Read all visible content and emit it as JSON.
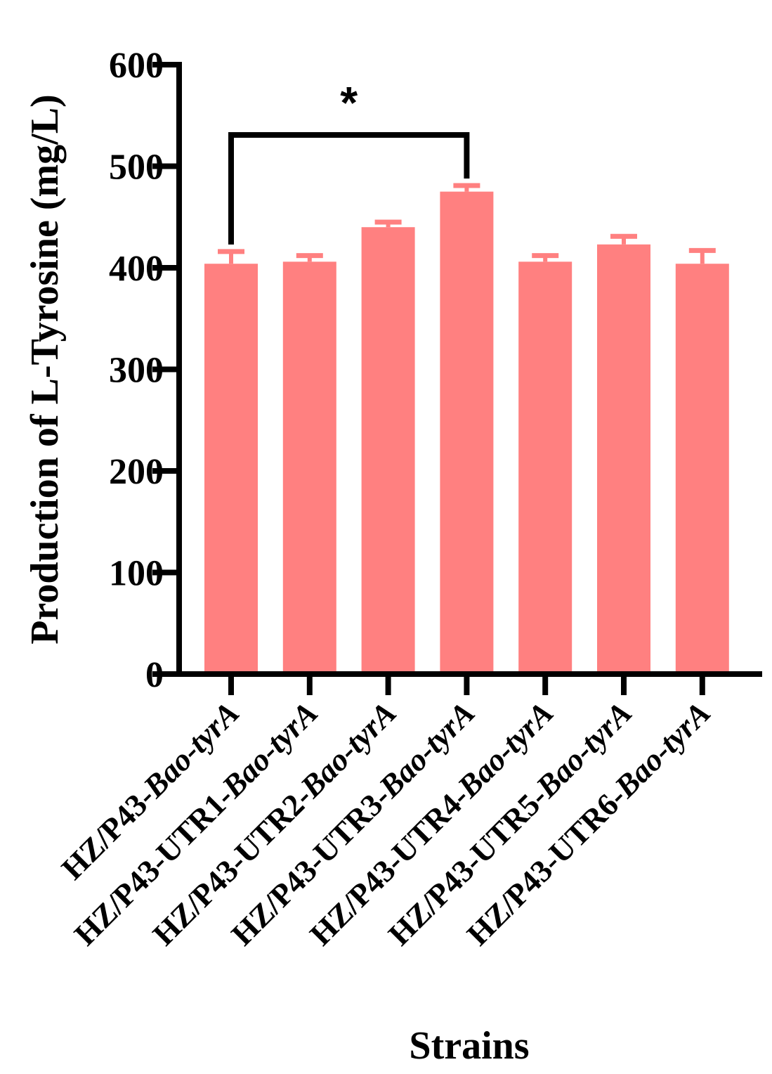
{
  "chart_data": {
    "type": "bar",
    "title": "",
    "xlabel": "Strains",
    "ylabel": "Production of L-Tyrosine (mg/L)",
    "ylim": [
      0,
      600
    ],
    "yticks": [
      "0",
      "100",
      "200",
      "300",
      "400",
      "500",
      "600"
    ],
    "categories": [
      {
        "prefix": "HZ/P43-",
        "italic": "Bao-tyrA"
      },
      {
        "prefix": "HZ/P43-UTR1-",
        "italic": "Bao-tyrA"
      },
      {
        "prefix": "HZ/P43-UTR2-",
        "italic": "Bao-tyrA"
      },
      {
        "prefix": "HZ/P43-UTR3-",
        "italic": "Bao-tyrA"
      },
      {
        "prefix": "HZ/P43-UTR4-",
        "italic": "Bao-tyrA"
      },
      {
        "prefix": "HZ/P43-UTR5-",
        "italic": "Bao-tyrA"
      },
      {
        "prefix": "HZ/P43-UTR6-",
        "italic": "Bao-tyrA"
      }
    ],
    "values": [
      404,
      406,
      440,
      475,
      406,
      423,
      404
    ],
    "errors": [
      12,
      6,
      5,
      6,
      6,
      8,
      13
    ],
    "bar_color": "#FF8080",
    "significance": {
      "from": 0,
      "to": 3,
      "label": "*"
    }
  }
}
